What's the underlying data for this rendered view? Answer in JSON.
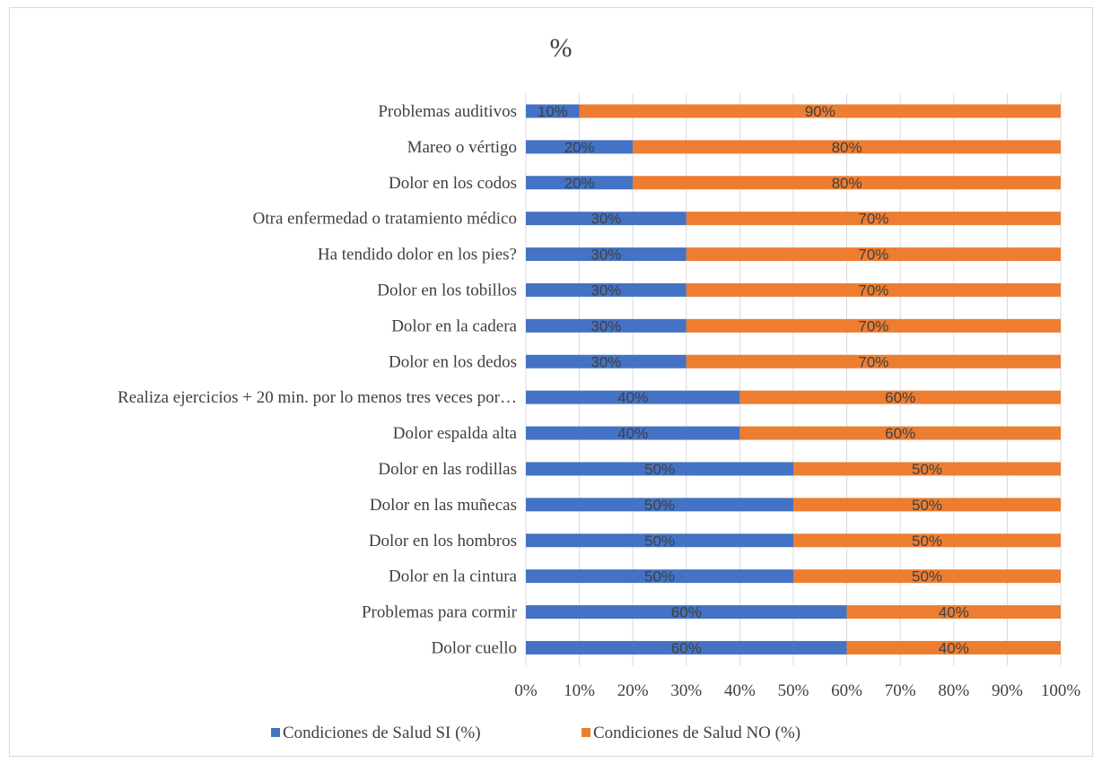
{
  "chart_data": {
    "type": "bar",
    "orientation": "horizontal",
    "stacked": "percent",
    "title": "%",
    "categories": [
      "Problemas auditivos",
      "Mareo o vértigo",
      "Dolor en los codos",
      "Otra enfermedad o tratamiento médico",
      "Ha tendido dolor en los pies?",
      "Dolor en los tobillos",
      "Dolor en la cadera",
      "Dolor en los dedos",
      "Realiza ejercicios + 20 min. por lo menos tres veces por…",
      "Dolor espalda alta",
      "Dolor en las rodillas",
      "Dolor en las muñecas",
      "Dolor en los hombros",
      "Dolor en la cintura",
      "Problemas para cormir",
      "Dolor cuello"
    ],
    "series": [
      {
        "name": "Condiciones de Salud SI (%)",
        "color": "#4472c4",
        "values": [
          10,
          20,
          20,
          30,
          30,
          30,
          30,
          30,
          40,
          40,
          50,
          50,
          50,
          50,
          60,
          60
        ],
        "labels": [
          "10%",
          "20%",
          "20%",
          "30%",
          "30%",
          "30%",
          "30%",
          "30%",
          "40%",
          "40%",
          "50%",
          "50%",
          "50%",
          "50%",
          "60%",
          "60%"
        ]
      },
      {
        "name": "Condiciones de Salud NO (%)",
        "color": "#ed7d31",
        "values": [
          90,
          80,
          80,
          70,
          70,
          70,
          70,
          70,
          60,
          60,
          50,
          50,
          50,
          50,
          40,
          40
        ],
        "labels": [
          "90%",
          "80%",
          "80%",
          "70%",
          "70%",
          "70%",
          "70%",
          "70%",
          "60%",
          "60%",
          "50%",
          "50%",
          "50%",
          "50%",
          "40%",
          "40%"
        ]
      }
    ],
    "x_ticks": [
      "0%",
      "10%",
      "20%",
      "30%",
      "40%",
      "50%",
      "60%",
      "70%",
      "80%",
      "90%",
      "100%"
    ],
    "xlim": [
      0,
      100
    ],
    "grid": true,
    "legend_position": "bottom"
  }
}
